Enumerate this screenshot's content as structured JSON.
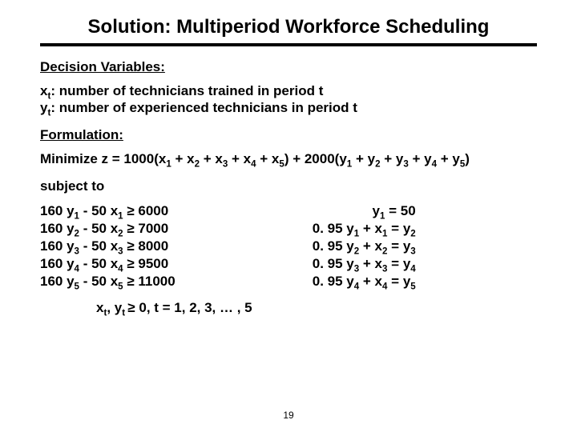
{
  "title": "Solution: Multiperiod Workforce Scheduling",
  "sections": {
    "dv_head": "Decision Variables:",
    "form_head": "Formulation:"
  },
  "dv": {
    "x_def": ": number of technicians trained in period t",
    "y_def": ": number of experienced technicians in period t"
  },
  "objective": {
    "prefix": "Minimize z = 1000(x",
    "mid": ") +   2000(y",
    "tail": ")"
  },
  "subject_to": "subject to",
  "constraints_left": [
    {
      "coef1": "160 y",
      "i": "1",
      "mid": " - 50 x",
      "j": "1",
      "rhs": "  6000"
    },
    {
      "coef1": "160 y",
      "i": "2",
      "mid": " - 50 x",
      "j": "2",
      "rhs": "  7000"
    },
    {
      "coef1": "160 y",
      "i": "3",
      "mid": " - 50 x",
      "j": "3",
      "rhs": "  8000"
    },
    {
      "coef1": "160 y",
      "i": "4",
      "mid": " - 50 x",
      "j": "4",
      "rhs": "  9500"
    },
    {
      "coef1": "160 y",
      "i": "5",
      "mid": " - 50 x",
      "j": "5",
      "rhs": "  11000"
    }
  ],
  "constraints_right": [
    {
      "text_a": "y",
      "sa": "1",
      "text_b": " = 50",
      "sb": ""
    },
    {
      "text_a": "0. 95 y",
      "sa": "1",
      "text_b": " + x",
      "sb": "1",
      "tail": " = y",
      "sc": "2"
    },
    {
      "text_a": "0. 95 y",
      "sa": "2",
      "text_b": " + x",
      "sb": "2",
      "tail": " = y",
      "sc": "3"
    },
    {
      "text_a": "0. 95 y",
      "sa": "3",
      "text_b": " + x",
      "sb": "3",
      "tail": " = y",
      "sc": "4"
    },
    {
      "text_a": "0. 95 y",
      "sa": "4",
      "text_b": " + x",
      "sb": "4",
      "tail": " = y",
      "sc": "5"
    }
  ],
  "nonneg": {
    "a": "x",
    "b": ", y",
    "c": " 0, t = 1, 2, 3, … , 5"
  },
  "ge": "≥",
  "page": "19"
}
